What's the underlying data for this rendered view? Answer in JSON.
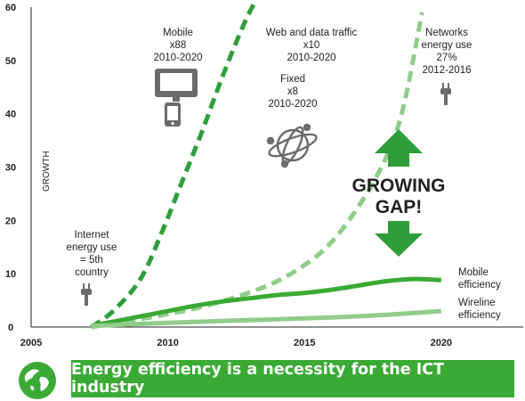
{
  "chart_data": {
    "type": "line",
    "xlim": [
      2005,
      2023
    ],
    "ylim": [
      0,
      60
    ],
    "x_ticks": [
      2005,
      2010,
      2015,
      2020
    ],
    "y_ticks": [
      0,
      10,
      20,
      30,
      40,
      50,
      60
    ],
    "ylabel": "GROWTH",
    "grid": false,
    "series": [
      {
        "id": "mobile",
        "x": [
          2007.2,
          2008,
          2009,
          2009.8,
          2010.5,
          2011.2,
          2012,
          2012.8,
          2013.3
        ],
        "values": [
          0,
          3,
          9,
          18,
          27,
          36,
          47,
          57,
          62
        ],
        "color": "#2e9e3a",
        "dash": true
      },
      {
        "id": "web",
        "x": [
          2007.2,
          2009,
          2011,
          2013,
          2014.5,
          2016,
          2017.5,
          2018.5,
          2019.3
        ],
        "values": [
          0,
          1.5,
          3.5,
          6.5,
          10,
          16,
          27,
          39,
          59
        ],
        "color": "#8fcd88",
        "dash": true
      },
      {
        "id": "mobile-efficiency",
        "name": "Mobile efficiency",
        "x": [
          2007.2,
          2008,
          2009,
          2010,
          2011,
          2012,
          2013,
          2014,
          2015,
          2016,
          2017,
          2018,
          2019,
          2020
        ],
        "values": [
          0.2,
          1.0,
          2.0,
          3.0,
          4.0,
          4.8,
          5.4,
          6.0,
          6.4,
          7.0,
          7.8,
          8.6,
          9.0,
          8.8
        ],
        "color": "#3aaa35",
        "dash": false
      },
      {
        "id": "wireline-efficiency",
        "name": "Wireline efficiency",
        "x": [
          2007.2,
          2010,
          2013,
          2016,
          2018,
          2020
        ],
        "values": [
          0.2,
          0.8,
          1.3,
          1.8,
          2.3,
          3.0
        ],
        "color": "#8fcd88",
        "dash": false
      }
    ],
    "annotations": {
      "mobile": [
        "Mobile",
        "x88",
        "2010-2020"
      ],
      "web": [
        "Web and data traffic",
        "x10",
        "2010-2020"
      ],
      "fixed": [
        "Fixed",
        "x8",
        "2010-2020"
      ],
      "networks": [
        "Networks",
        "energy use",
        "27%",
        "2012-2016"
      ],
      "internet": [
        "Internet",
        "energy use",
        "= 5th",
        "country"
      ],
      "gap": [
        "GROWING",
        "GAP!"
      ],
      "mobile_eff": [
        "Mobile",
        "efficiency"
      ],
      "wireline_eff": [
        "Wireline",
        "efficiency"
      ]
    }
  },
  "banner": {
    "text": "Energy efficiency is a necessity for the ICT industry"
  },
  "colors": {
    "dark_green": "#2e9e3a",
    "light_green": "#8fcd88",
    "mid_green": "#3aaa35",
    "icon_gray": "#6b6b6b"
  },
  "icons": [
    "monitor-icon",
    "phone-icon",
    "globe-network-icon",
    "plug-icon",
    "globe-icon",
    "arrow-up-icon",
    "arrow-down-icon"
  ]
}
